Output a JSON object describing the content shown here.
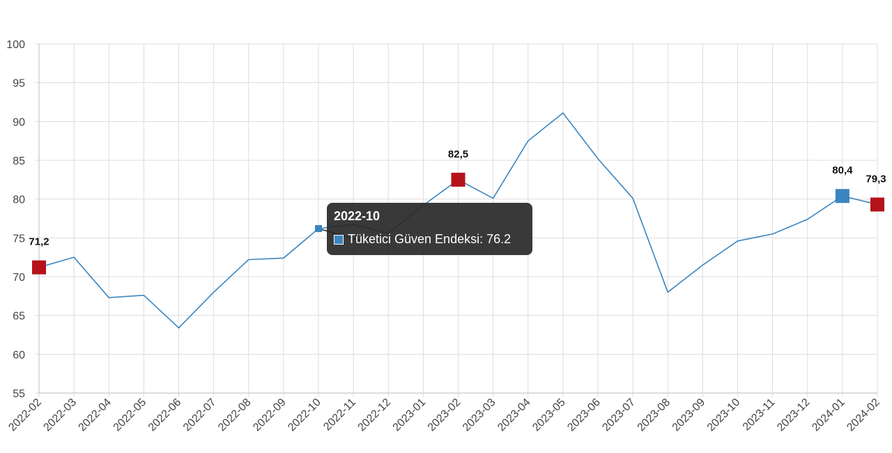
{
  "chart_data": {
    "type": "line",
    "title": "",
    "xlabel": "",
    "ylabel": "",
    "ylim": [
      55,
      100
    ],
    "yticks": [
      55,
      60,
      65,
      70,
      75,
      80,
      85,
      90,
      95,
      100
    ],
    "grid": true,
    "categories": [
      "2022-02",
      "2022-03",
      "2022-04",
      "2022-05",
      "2022-06",
      "2022-07",
      "2022-08",
      "2022-09",
      "2022-10",
      "2022-11",
      "2022-12",
      "2023-01",
      "2023-02",
      "2023-03",
      "2023-04",
      "2023-05",
      "2023-06",
      "2023-07",
      "2023-08",
      "2023-09",
      "2023-10",
      "2023-11",
      "2023-12",
      "2024-01",
      "2024-02"
    ],
    "series": [
      {
        "name": "Tüketici Güven Endeksi",
        "color": "#3a85c0",
        "values": [
          71.2,
          72.5,
          67.3,
          67.6,
          63.4,
          68.0,
          72.2,
          72.4,
          76.2,
          76.7,
          75.6,
          79.2,
          82.5,
          80.1,
          87.5,
          91.1,
          85.2,
          80.1,
          68.0,
          71.5,
          74.6,
          75.5,
          77.4,
          80.4,
          79.3
        ]
      }
    ],
    "markers": [
      {
        "category": "2022-02",
        "value": 71.2,
        "label": "71,2",
        "color": "#b5121b"
      },
      {
        "category": "2023-02",
        "value": 82.5,
        "label": "82,5",
        "color": "#b5121b"
      },
      {
        "category": "2024-01",
        "value": 80.4,
        "label": "80,4",
        "color": "#3a85c0"
      },
      {
        "category": "2024-02",
        "value": 79.3,
        "label": "79,3",
        "color": "#b5121b"
      }
    ],
    "tooltip": {
      "category": "2022-10",
      "title": "2022-10",
      "text": "Tüketici Güven Endeksi: 76.2",
      "swatch_color": "#3a85c0"
    }
  }
}
